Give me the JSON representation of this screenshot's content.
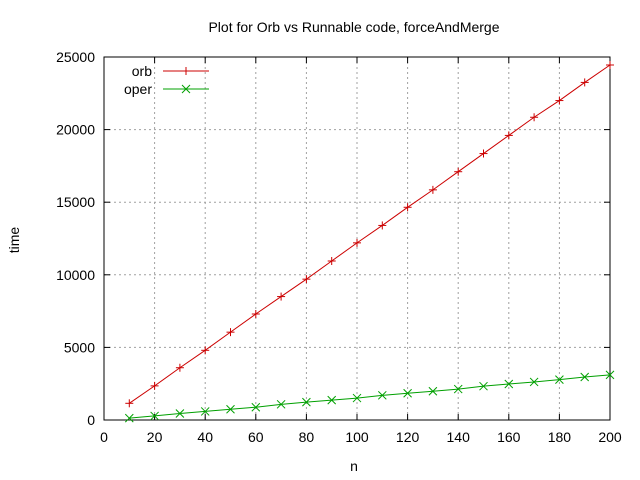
{
  "chart_data": {
    "type": "line",
    "title": "Plot for Orb vs Runnable code, forceAndMerge",
    "xlabel": "n",
    "ylabel": "time",
    "xlim": [
      0,
      200
    ],
    "ylim": [
      0,
      25000
    ],
    "xticks": [
      0,
      20,
      40,
      60,
      80,
      100,
      120,
      140,
      160,
      180,
      200
    ],
    "yticks": [
      0,
      5000,
      10000,
      15000,
      20000,
      25000
    ],
    "grid": true,
    "legend": "top-left",
    "x": [
      10,
      20,
      30,
      40,
      50,
      60,
      70,
      80,
      90,
      100,
      110,
      120,
      130,
      140,
      150,
      160,
      170,
      180,
      190,
      200
    ],
    "series": [
      {
        "name": "orb",
        "color": "#cc0000",
        "marker": "plus",
        "values": [
          1150,
          2350,
          3600,
          4800,
          6050,
          7300,
          8500,
          9700,
          10950,
          12200,
          13400,
          14650,
          15850,
          17100,
          18350,
          19600,
          20850,
          22000,
          23250,
          24450
        ]
      },
      {
        "name": "oper",
        "color": "#00a000",
        "marker": "cross",
        "values": [
          130,
          280,
          450,
          590,
          740,
          880,
          1080,
          1230,
          1370,
          1510,
          1700,
          1840,
          1980,
          2130,
          2330,
          2480,
          2620,
          2780,
          2960,
          3110
        ]
      }
    ]
  }
}
